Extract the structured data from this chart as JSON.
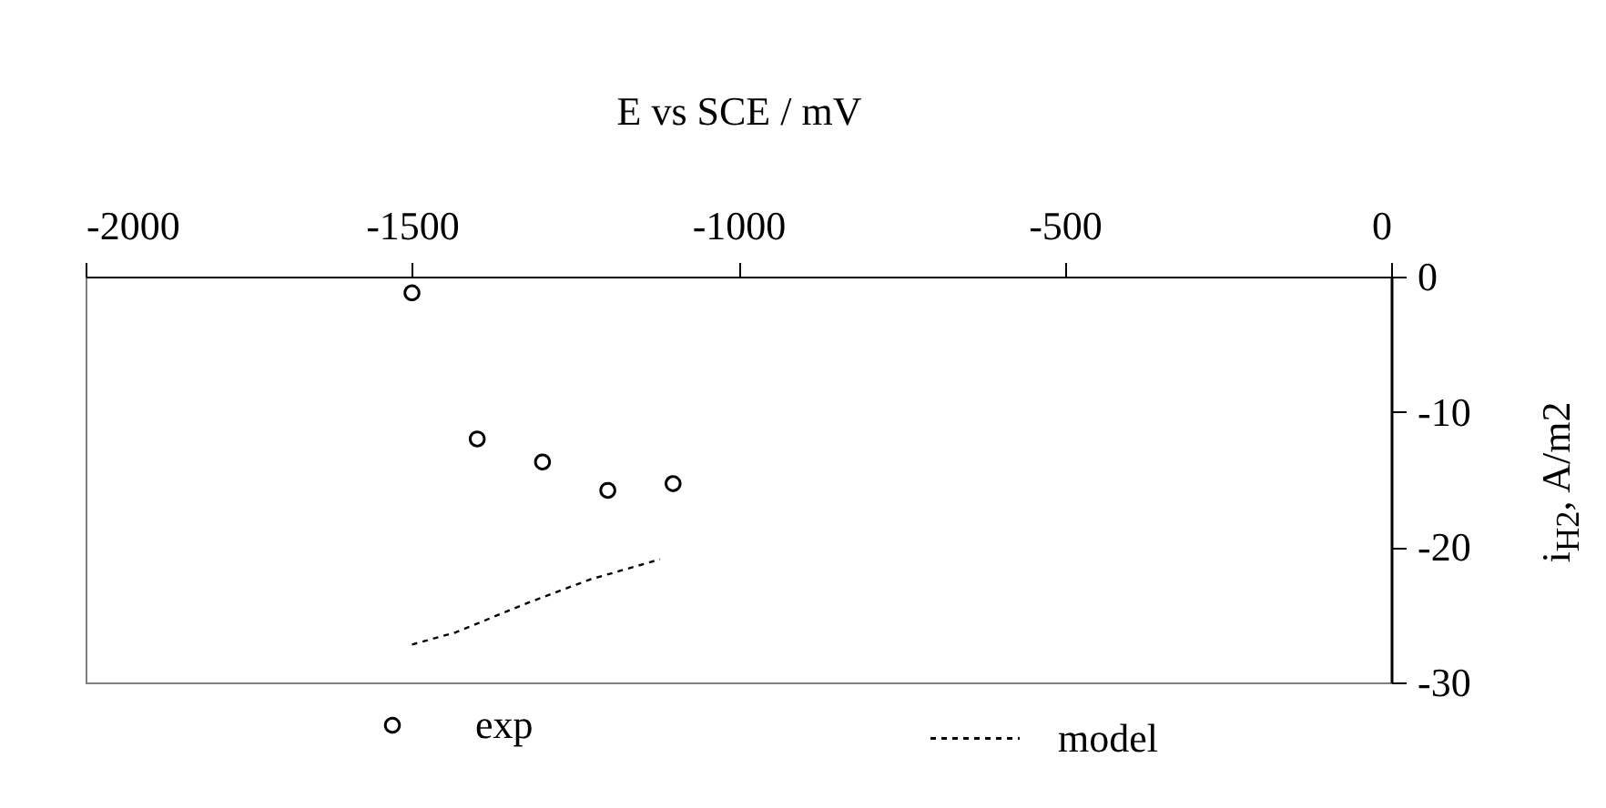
{
  "chart_data": {
    "type": "scatter",
    "xlabel": "E vs SCE / mV",
    "ylabel": "i$_{H2}$, A/m2",
    "xlim": [
      -2000,
      0
    ],
    "xticks": [
      -2000,
      -1500,
      -1000,
      -500,
      0
    ],
    "ylim": [
      -30,
      0
    ],
    "yticks": [
      -30,
      -20,
      -10,
      0
    ],
    "grid": false,
    "legend": "bottom",
    "series": [
      {
        "name": "exp",
        "marker": "circle",
        "color": "#000000",
        "x": [
          -1500,
          -1400,
          -1300,
          -1200,
          -1100
        ],
        "values": [
          -1.2,
          -12.0,
          -13.7,
          -15.8,
          -15.3
        ]
      },
      {
        "name": "model",
        "type": "line",
        "line_style": "dashed",
        "color": "#000000",
        "x": [
          -1500,
          -1433,
          -1327,
          -1228,
          -1120
        ],
        "values": [
          -27.2,
          -26.3,
          -24.2,
          -22.4,
          -20.9
        ]
      }
    ]
  }
}
